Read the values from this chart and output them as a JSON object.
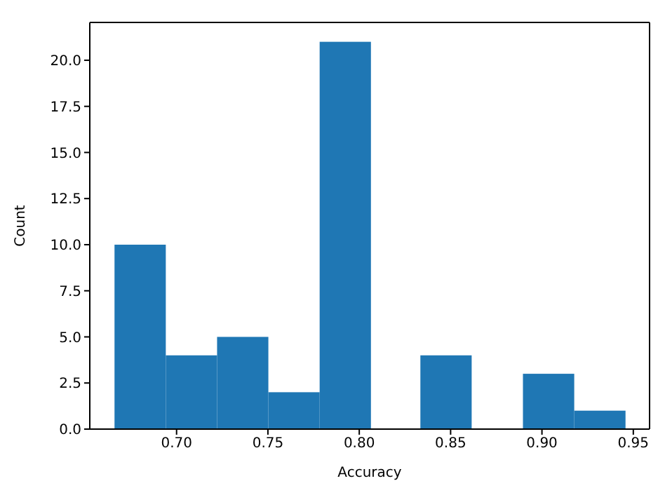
{
  "chart_data": {
    "type": "histogram",
    "xlabel": "Accuracy",
    "ylabel": "Count",
    "color": "#1f77b4",
    "bins": [
      0.666,
      0.694,
      0.722,
      0.75,
      0.778,
      0.806,
      0.833,
      0.861,
      0.889,
      0.917,
      0.945
    ],
    "values": [
      10,
      4,
      5,
      2,
      21,
      0,
      4,
      0,
      3,
      1
    ],
    "xlim": [
      0.6525,
      0.9589
    ],
    "ylim": [
      0,
      22.05
    ],
    "xticks": [
      {
        "value": 0.7,
        "label": "0.70"
      },
      {
        "value": 0.75,
        "label": "0.75"
      },
      {
        "value": 0.8,
        "label": "0.80"
      },
      {
        "value": 0.85,
        "label": "0.85"
      },
      {
        "value": 0.9,
        "label": "0.90"
      },
      {
        "value": 0.95,
        "label": "0.95"
      }
    ],
    "yticks": [
      {
        "value": 0,
        "label": "0.0"
      },
      {
        "value": 2.5,
        "label": "2.5"
      },
      {
        "value": 5,
        "label": "5.0"
      },
      {
        "value": 7.5,
        "label": "7.5"
      },
      {
        "value": 10,
        "label": "10.0"
      },
      {
        "value": 12.5,
        "label": "12.5"
      },
      {
        "value": 15,
        "label": "15.0"
      },
      {
        "value": 17.5,
        "label": "17.5"
      },
      {
        "value": 20,
        "label": "20.0"
      }
    ],
    "grid": false
  }
}
